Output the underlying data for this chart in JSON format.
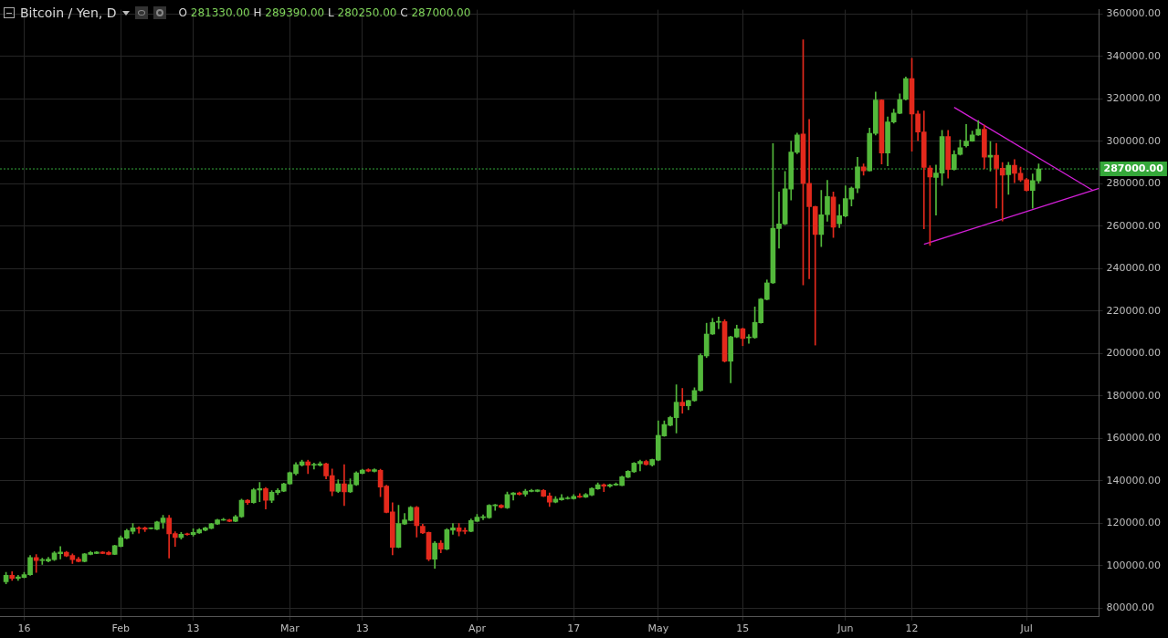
{
  "chart_data": {
    "type": "candlestick",
    "title": "Bitcoin / Yen, D",
    "annotations": [
      "O 281330.00 H 289390.00 L 280250.00 C 287000.00"
    ],
    "x": [
      "--01-13",
      "--01-14",
      "--01-15",
      "--01-16",
      "--01-17",
      "--01-18",
      "--01-19",
      "--01-20",
      "--01-21",
      "--01-22",
      "--01-23",
      "--01-24",
      "--01-25",
      "--01-26",
      "--01-27",
      "--01-28",
      "--01-29",
      "--01-30",
      "--01-31",
      "--02-01",
      "--02-02",
      "--02-03",
      "--02-04",
      "--02-05",
      "--02-06",
      "--02-07",
      "--02-08",
      "--02-09",
      "--02-10",
      "--02-11",
      "--02-12",
      "--02-13",
      "--02-14",
      "--02-15",
      "--02-16",
      "--02-17",
      "--02-18",
      "--02-19",
      "--02-20",
      "--02-21",
      "--02-22",
      "--02-23",
      "--02-24",
      "--02-25",
      "--02-26",
      "--02-27",
      "--02-28",
      "--03-01",
      "--03-02",
      "--03-03",
      "--03-04",
      "--03-05",
      "--03-06",
      "--03-07",
      "--03-08",
      "--03-09",
      "--03-10",
      "--03-11",
      "--03-12",
      "--03-13",
      "--03-14",
      "--03-15",
      "--03-16",
      "--03-17",
      "--03-18",
      "--03-19",
      "--03-20",
      "--03-21",
      "--03-22",
      "--03-23",
      "--03-24",
      "--03-25",
      "--03-26",
      "--03-27",
      "--03-28",
      "--03-29",
      "--03-30",
      "--03-31",
      "--04-01",
      "--04-02",
      "--04-03",
      "--04-04",
      "--04-05",
      "--04-06",
      "--04-07",
      "--04-08",
      "--04-09",
      "--04-10",
      "--04-11",
      "--04-12",
      "--04-13",
      "--04-14",
      "--04-15",
      "--04-16",
      "--04-17",
      "--04-18",
      "--04-19",
      "--04-20",
      "--04-21",
      "--04-22",
      "--04-23",
      "--04-24",
      "--04-25",
      "--04-26",
      "--04-27",
      "--04-28",
      "--04-29",
      "--04-30",
      "--05-01",
      "--05-02",
      "--05-03",
      "--05-04",
      "--05-05",
      "--05-06",
      "--05-07",
      "--05-08",
      "--05-09",
      "--05-10",
      "--05-11",
      "--05-12",
      "--05-13",
      "--05-14",
      "--05-15",
      "--05-16",
      "--05-17",
      "--05-18",
      "--05-19",
      "--05-20",
      "--05-21",
      "--05-22",
      "--05-23",
      "--05-24",
      "--05-25",
      "--05-26",
      "--05-27",
      "--05-28",
      "--05-29",
      "--05-30",
      "--05-31",
      "--06-01",
      "--06-02",
      "--06-03",
      "--06-04",
      "--06-05",
      "--06-06",
      "--06-07",
      "--06-08",
      "--06-09",
      "--06-10",
      "--06-11",
      "--06-12",
      "--06-13",
      "--06-14",
      "--06-15",
      "--06-16",
      "--06-17",
      "--06-18",
      "--06-19",
      "--06-20",
      "--06-21",
      "--06-22",
      "--06-23",
      "--06-24",
      "--06-25",
      "--06-26",
      "--06-27",
      "--06-28",
      "--06-29",
      "--06-30",
      "--07-01",
      "--07-02",
      "--07-03"
    ],
    "ohlc": [
      [
        92500,
        97000,
        91500,
        95500
      ],
      [
        95500,
        97300,
        93100,
        94100
      ],
      [
        94100,
        95500,
        93200,
        94800
      ],
      [
        94500,
        96900,
        94300,
        95900
      ],
      [
        95800,
        104900,
        95500,
        103900
      ],
      [
        103900,
        105300,
        96900,
        102500
      ],
      [
        102500,
        103600,
        100700,
        102900
      ],
      [
        102300,
        104000,
        101800,
        103200
      ],
      [
        102900,
        106700,
        102500,
        106100
      ],
      [
        105700,
        109100,
        103200,
        106500
      ],
      [
        106400,
        106800,
        104300,
        104600
      ],
      [
        104900,
        105600,
        101100,
        102900
      ],
      [
        103200,
        104000,
        101800,
        102100
      ],
      [
        102100,
        105900,
        101800,
        105600
      ],
      [
        105400,
        106800,
        105200,
        106300
      ],
      [
        105800,
        106700,
        105700,
        106500
      ],
      [
        106500,
        106700,
        105700,
        105800
      ],
      [
        106300,
        106800,
        105200,
        105400
      ],
      [
        105400,
        109700,
        105300,
        109500
      ],
      [
        109200,
        114100,
        109000,
        113300
      ],
      [
        113000,
        117300,
        112700,
        116600
      ],
      [
        116300,
        120000,
        115100,
        117900
      ],
      [
        117600,
        118400,
        115400,
        117500
      ],
      [
        117900,
        118300,
        116200,
        117200
      ],
      [
        117500,
        118000,
        117300,
        117600
      ],
      [
        117200,
        121000,
        117000,
        120700
      ],
      [
        120500,
        123800,
        117600,
        122500
      ],
      [
        122500,
        123800,
        103700,
        115100
      ],
      [
        115200,
        116100,
        109200,
        113400
      ],
      [
        113400,
        115800,
        112600,
        114900
      ],
      [
        115100,
        115400,
        114400,
        114700
      ],
      [
        114700,
        117500,
        114000,
        115800
      ],
      [
        115500,
        117600,
        115300,
        117000
      ],
      [
        116800,
        118200,
        116500,
        117900
      ],
      [
        117600,
        120100,
        117400,
        119800
      ],
      [
        119700,
        122000,
        119500,
        121700
      ],
      [
        121500,
        122400,
        121400,
        121900
      ],
      [
        121700,
        122000,
        120800,
        121000
      ],
      [
        121000,
        123800,
        120800,
        123200
      ],
      [
        123100,
        131400,
        122800,
        130900
      ],
      [
        130900,
        131200,
        128900,
        129800
      ],
      [
        129800,
        136500,
        129500,
        135900
      ],
      [
        135700,
        139300,
        130200,
        136400
      ],
      [
        136400,
        136900,
        126800,
        130900
      ],
      [
        130900,
        135400,
        129800,
        134700
      ],
      [
        134500,
        136400,
        133600,
        135500
      ],
      [
        135200,
        139000,
        135000,
        138700
      ],
      [
        138600,
        144200,
        138400,
        143900
      ],
      [
        143500,
        148700,
        142800,
        147700
      ],
      [
        147400,
        149800,
        147000,
        149000
      ],
      [
        149000,
        149800,
        143500,
        147400
      ],
      [
        147400,
        148400,
        145600,
        147800
      ],
      [
        147400,
        149000,
        147000,
        148100
      ],
      [
        148100,
        148400,
        141000,
        142400
      ],
      [
        142500,
        145600,
        133000,
        135200
      ],
      [
        135100,
        140600,
        134500,
        138700
      ],
      [
        138700,
        147700,
        128400,
        134800
      ],
      [
        134800,
        141000,
        134500,
        138300
      ],
      [
        138200,
        144400,
        137900,
        143800
      ],
      [
        143600,
        145500,
        143300,
        145100
      ],
      [
        145300,
        145700,
        144300,
        144600
      ],
      [
        144500,
        145700,
        144200,
        145300
      ],
      [
        145000,
        145500,
        132600,
        137100
      ],
      [
        137600,
        138000,
        125000,
        125200
      ],
      [
        125400,
        129700,
        105200,
        108700
      ],
      [
        108700,
        128500,
        108500,
        119900
      ],
      [
        119700,
        124700,
        119500,
        121700
      ],
      [
        121400,
        128000,
        121200,
        127600
      ],
      [
        127600,
        128000,
        113600,
        118900
      ],
      [
        118700,
        119600,
        115200,
        115500
      ],
      [
        115800,
        116000,
        102400,
        103100
      ],
      [
        103100,
        111500,
        98800,
        110700
      ],
      [
        110700,
        111900,
        106200,
        107900
      ],
      [
        107900,
        117600,
        107500,
        117000
      ],
      [
        116800,
        120000,
        114900,
        117900
      ],
      [
        117900,
        120000,
        114100,
        116300
      ],
      [
        116600,
        117900,
        115100,
        116300
      ],
      [
        116300,
        122100,
        116000,
        121300
      ],
      [
        121000,
        124200,
        120900,
        123000
      ],
      [
        122700,
        124000,
        121700,
        123200
      ],
      [
        122700,
        128900,
        122400,
        128500
      ],
      [
        128300,
        129000,
        126100,
        128600
      ],
      [
        128500,
        128900,
        127200,
        127500
      ],
      [
        127300,
        134800,
        127000,
        133600
      ],
      [
        133600,
        134600,
        131000,
        134300
      ],
      [
        134300,
        134800,
        133400,
        133700
      ],
      [
        133800,
        136100,
        132800,
        135200
      ],
      [
        135100,
        136100,
        134800,
        135400
      ],
      [
        135100,
        135900,
        134800,
        135700
      ],
      [
        135500,
        136000,
        132600,
        132800
      ],
      [
        133000,
        134400,
        128000,
        130000
      ],
      [
        130000,
        132600,
        129700,
        131400
      ],
      [
        131100,
        133600,
        130900,
        132000
      ],
      [
        131600,
        132600,
        131400,
        131900
      ],
      [
        131600,
        133600,
        131400,
        132700
      ],
      [
        132700,
        134000,
        132200,
        132400
      ],
      [
        132400,
        134100,
        132200,
        133600
      ],
      [
        133300,
        136800,
        133000,
        136500
      ],
      [
        136200,
        139100,
        136000,
        138200
      ],
      [
        138200,
        138700,
        135000,
        137500
      ],
      [
        137500,
        138500,
        137000,
        138200
      ],
      [
        138100,
        139100,
        137900,
        138400
      ],
      [
        137900,
        142300,
        137700,
        142000
      ],
      [
        141700,
        144900,
        141500,
        144600
      ],
      [
        144300,
        148700,
        144000,
        148400
      ],
      [
        148100,
        149800,
        144700,
        149200
      ],
      [
        149200,
        149800,
        147400,
        147700
      ],
      [
        147500,
        150300,
        147000,
        150100
      ],
      [
        149800,
        168300,
        149500,
        161500
      ],
      [
        161200,
        168300,
        161000,
        166600
      ],
      [
        166200,
        170500,
        165900,
        169900
      ],
      [
        169800,
        185300,
        162600,
        177100
      ],
      [
        177100,
        183600,
        171900,
        175400
      ],
      [
        175400,
        178000,
        173600,
        177900
      ],
      [
        177800,
        183900,
        177500,
        182600
      ],
      [
        182600,
        199900,
        182300,
        199100
      ],
      [
        198900,
        214300,
        198100,
        209200
      ],
      [
        209200,
        216600,
        209000,
        214700
      ],
      [
        214700,
        217200,
        211700,
        215200
      ],
      [
        215100,
        216000,
        196000,
        196400
      ],
      [
        196400,
        208200,
        186200,
        207900
      ],
      [
        207800,
        213400,
        207500,
        211700
      ],
      [
        211700,
        212000,
        203700,
        207100
      ],
      [
        207400,
        208900,
        204800,
        207600
      ],
      [
        207500,
        222000,
        207200,
        214700
      ],
      [
        214500,
        226000,
        214300,
        225700
      ],
      [
        225500,
        234700,
        225300,
        233300
      ],
      [
        233300,
        298900,
        233000,
        259000
      ],
      [
        258900,
        276100,
        249600,
        261100
      ],
      [
        261000,
        285800,
        260700,
        277600
      ],
      [
        277500,
        300100,
        272300,
        294900
      ],
      [
        294800,
        303900,
        294100,
        303000
      ],
      [
        303400,
        347800,
        232300,
        280200
      ],
      [
        280200,
        310300,
        235200,
        269200
      ],
      [
        269200,
        269500,
        204000,
        256100
      ],
      [
        256100,
        276900,
        250400,
        265400
      ],
      [
        265400,
        281600,
        262300,
        274000
      ],
      [
        273800,
        276100,
        254700,
        259500
      ],
      [
        261100,
        270200,
        259300,
        264900
      ],
      [
        264800,
        279000,
        264400,
        273000
      ],
      [
        272800,
        278500,
        269500,
        278000
      ],
      [
        277900,
        292500,
        275800,
        288000
      ],
      [
        288000,
        289300,
        284000,
        286100
      ],
      [
        286100,
        306200,
        286000,
        303700
      ],
      [
        303700,
        323200,
        303000,
        319400
      ],
      [
        319400,
        319600,
        289300,
        294500
      ],
      [
        294500,
        311500,
        288500,
        309100
      ],
      [
        309100,
        315100,
        308500,
        313300
      ],
      [
        313200,
        322400,
        313000,
        319700
      ],
      [
        319700,
        330300,
        319400,
        329600
      ],
      [
        329600,
        339100,
        295300,
        312900
      ],
      [
        312900,
        314300,
        300300,
        304400
      ],
      [
        304400,
        314300,
        258800,
        287700
      ],
      [
        287400,
        288500,
        250900,
        283200
      ],
      [
        283000,
        288800,
        265200,
        285000
      ],
      [
        285000,
        305200,
        279200,
        302300
      ],
      [
        302300,
        305200,
        282600,
        286700
      ],
      [
        286700,
        295600,
        286400,
        293800
      ],
      [
        293800,
        300600,
        293500,
        297000
      ],
      [
        297900,
        307900,
        297300,
        300100
      ],
      [
        300100,
        304800,
        299900,
        303000
      ],
      [
        303000,
        309800,
        302700,
        305700
      ],
      [
        305700,
        307600,
        287100,
        292500
      ],
      [
        292500,
        299900,
        286000,
        293400
      ],
      [
        293400,
        299000,
        268600,
        287300
      ],
      [
        287300,
        290000,
        262400,
        284000
      ],
      [
        284300,
        290100,
        275000,
        288700
      ],
      [
        288700,
        291400,
        280500,
        284900
      ],
      [
        284900,
        287800,
        281000,
        281800
      ],
      [
        281900,
        282600,
        276500,
        276800
      ],
      [
        276800,
        284600,
        268500,
        281500
      ],
      [
        281330,
        289390,
        280250,
        287000
      ]
    ],
    "colors": [
      "#53b83b",
      "#e3291c",
      "#53b83b",
      "#53b83b",
      "#53b83b",
      "#e3291c",
      "#53b83b",
      "#53b83b",
      "#53b83b",
      "#53b83b",
      "#e3291c",
      "#e3291c",
      "#e3291c",
      "#53b83b",
      "#53b83b",
      "#53b83b",
      "#e3291c",
      "#e3291c",
      "#53b83b",
      "#53b83b",
      "#53b83b",
      "#53b83b",
      "#e3291c",
      "#e3291c",
      "#53b83b",
      "#53b83b",
      "#53b83b",
      "#e3291c",
      "#e3291c",
      "#53b83b",
      "#e3291c",
      "#53b83b",
      "#53b83b",
      "#53b83b",
      "#53b83b",
      "#53b83b",
      "#53b83b",
      "#e3291c",
      "#53b83b",
      "#53b83b",
      "#e3291c",
      "#53b83b",
      "#53b83b",
      "#e3291c",
      "#53b83b",
      "#53b83b",
      "#53b83b",
      "#53b83b",
      "#53b83b",
      "#53b83b",
      "#e3291c",
      "#53b83b",
      "#53b83b",
      "#e3291c",
      "#e3291c",
      "#53b83b",
      "#e3291c",
      "#53b83b",
      "#53b83b",
      "#53b83b",
      "#e3291c",
      "#53b83b",
      "#e3291c",
      "#e3291c",
      "#e3291c",
      "#53b83b",
      "#53b83b",
      "#53b83b",
      "#e3291c",
      "#e3291c",
      "#e3291c",
      "#53b83b",
      "#e3291c",
      "#53b83b",
      "#53b83b",
      "#e3291c",
      "#e3291c",
      "#53b83b",
      "#53b83b",
      "#53b83b",
      "#53b83b",
      "#53b83b",
      "#e3291c",
      "#53b83b",
      "#53b83b",
      "#e3291c",
      "#53b83b",
      "#53b83b",
      "#53b83b",
      "#e3291c",
      "#e3291c",
      "#53b83b",
      "#53b83b",
      "#53b83b",
      "#53b83b",
      "#e3291c",
      "#53b83b",
      "#53b83b",
      "#53b83b",
      "#e3291c",
      "#53b83b",
      "#53b83b",
      "#53b83b",
      "#53b83b",
      "#53b83b",
      "#53b83b",
      "#e3291c",
      "#53b83b",
      "#53b83b",
      "#53b83b",
      "#53b83b",
      "#53b83b",
      "#e3291c",
      "#53b83b",
      "#53b83b",
      "#53b83b",
      "#53b83b",
      "#53b83b",
      "#53b83b",
      "#e3291c",
      "#53b83b",
      "#53b83b",
      "#e3291c",
      "#53b83b",
      "#53b83b",
      "#53b83b",
      "#53b83b",
      "#53b83b",
      "#53b83b",
      "#53b83b",
      "#53b83b",
      "#53b83b",
      "#e3291c",
      "#e3291c",
      "#e3291c",
      "#53b83b",
      "#53b83b",
      "#e3291c",
      "#53b83b",
      "#53b83b",
      "#53b83b",
      "#53b83b",
      "#e3291c",
      "#53b83b",
      "#53b83b",
      "#e3291c",
      "#53b83b",
      "#53b83b",
      "#53b83b",
      "#53b83b",
      "#e3291c",
      "#e3291c",
      "#e3291c",
      "#e3291c",
      "#53b83b",
      "#53b83b",
      "#e3291c",
      "#53b83b",
      "#53b83b",
      "#53b83b",
      "#53b83b",
      "#53b83b",
      "#e3291c",
      "#53b83b",
      "#e3291c",
      "#e3291c",
      "#53b83b",
      "#e3291c",
      "#e3291c",
      "#e3291c",
      "#53b83b",
      "#53b83b"
    ],
    "series": [
      {
        "type": "line",
        "x": [
          "--06-19",
          "--07-12"
        ],
        "values": [
          316000,
          276800
        ],
        "color": "#d21fd6"
      },
      {
        "type": "line",
        "x": [
          "--06-14",
          "--07-13"
        ],
        "values": [
          251500,
          277800
        ],
        "color": "#d21fd6"
      }
    ],
    "ref_lines": [
      {
        "axis": "y",
        "value": 287000,
        "label": "287000.00",
        "color": "#35a83a",
        "line_style": "dotted"
      }
    ],
    "xlim": [
      "--01-12",
      "--07-13"
    ],
    "xticks": [
      {
        "value": "--01-16",
        "label": "16"
      },
      {
        "value": "--02-01",
        "label": "Feb"
      },
      {
        "value": "--02-13",
        "label": "13"
      },
      {
        "value": "--03-01",
        "label": "Mar"
      },
      {
        "value": "--03-13",
        "label": "13"
      },
      {
        "value": "--04-01",
        "label": "Apr"
      },
      {
        "value": "--04-17",
        "label": "17"
      },
      {
        "value": "--05-01",
        "label": "May"
      },
      {
        "value": "--05-15",
        "label": "15"
      },
      {
        "value": "--06-01",
        "label": "Jun"
      },
      {
        "value": "--06-12",
        "label": "12"
      },
      {
        "value": "--07-01",
        "label": "Jul"
      }
    ],
    "ylim": [
      76000,
      362000
    ],
    "yticks": [
      {
        "value": 80000,
        "label": "80000.00"
      },
      {
        "value": 100000,
        "label": "100000.00"
      },
      {
        "value": 120000,
        "label": "120000.00"
      },
      {
        "value": 140000,
        "label": "140000.00"
      },
      {
        "value": 160000,
        "label": "160000.00"
      },
      {
        "value": 180000,
        "label": "180000.00"
      },
      {
        "value": 200000,
        "label": "200000.00"
      },
      {
        "value": 220000,
        "label": "220000.00"
      },
      {
        "value": 240000,
        "label": "240000.00"
      },
      {
        "value": 260000,
        "label": "260000.00"
      },
      {
        "value": 280000,
        "label": "280000.00"
      },
      {
        "value": 300000,
        "label": "300000.00"
      },
      {
        "value": 320000,
        "label": "320000.00"
      },
      {
        "value": 340000,
        "label": "340000.00"
      },
      {
        "value": 360000,
        "label": "360000.00"
      }
    ],
    "grid": true
  }
}
